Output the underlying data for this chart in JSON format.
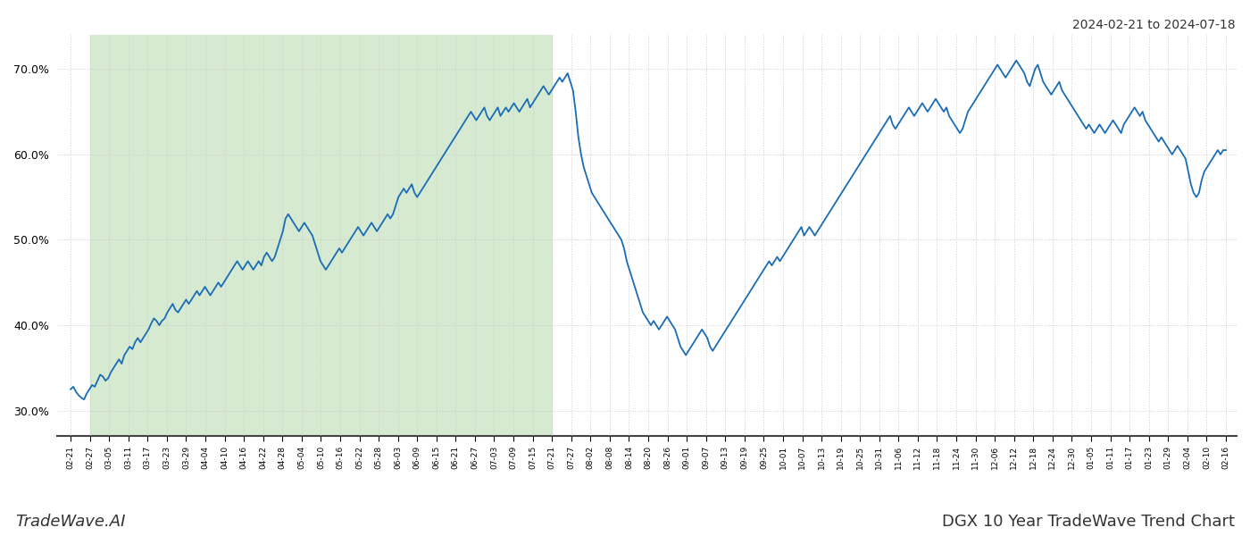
{
  "title_top_right": "2024-02-21 to 2024-07-18",
  "title_bottom_left": "TradeWave.AI",
  "title_bottom_right": "DGX 10 Year TradeWave Trend Chart",
  "line_color": "#1a6cb5",
  "line_width": 1.3,
  "highlight_color": "#d5ead0",
  "ylim_low": 27.0,
  "ylim_high": 74.0,
  "yticks": [
    30.0,
    40.0,
    50.0,
    60.0,
    70.0
  ],
  "grid_color": "#cccccc",
  "x_labels": [
    "02-21",
    "02-27",
    "03-05",
    "03-11",
    "03-17",
    "03-23",
    "03-29",
    "04-04",
    "04-10",
    "04-16",
    "04-22",
    "04-28",
    "05-04",
    "05-10",
    "05-16",
    "05-22",
    "05-28",
    "06-03",
    "06-09",
    "06-15",
    "06-21",
    "06-27",
    "07-03",
    "07-09",
    "07-15",
    "07-21",
    "07-27",
    "08-02",
    "08-08",
    "08-14",
    "08-20",
    "08-26",
    "09-01",
    "09-07",
    "09-13",
    "09-19",
    "09-25",
    "10-01",
    "10-07",
    "10-13",
    "10-19",
    "10-25",
    "10-31",
    "11-06",
    "11-12",
    "11-18",
    "11-24",
    "11-30",
    "12-06",
    "12-12",
    "12-18",
    "12-24",
    "12-30",
    "01-05",
    "01-11",
    "01-17",
    "01-23",
    "01-29",
    "02-04",
    "02-10",
    "02-16"
  ],
  "highlight_label_start": "02-27",
  "highlight_label_end": "07-21",
  "values": [
    32.5,
    32.8,
    32.2,
    31.8,
    31.5,
    31.3,
    32.0,
    32.5,
    33.0,
    32.8,
    33.5,
    34.2,
    34.0,
    33.5,
    33.8,
    34.5,
    35.0,
    35.5,
    36.0,
    35.5,
    36.5,
    37.0,
    37.5,
    37.2,
    38.0,
    38.5,
    38.0,
    38.5,
    39.0,
    39.5,
    40.2,
    40.8,
    40.5,
    40.0,
    40.5,
    40.8,
    41.5,
    42.0,
    42.5,
    41.8,
    41.5,
    42.0,
    42.5,
    43.0,
    42.5,
    43.0,
    43.5,
    44.0,
    43.5,
    44.0,
    44.5,
    44.0,
    43.5,
    44.0,
    44.5,
    45.0,
    44.5,
    45.0,
    45.5,
    46.0,
    46.5,
    47.0,
    47.5,
    47.0,
    46.5,
    47.0,
    47.5,
    47.0,
    46.5,
    47.0,
    47.5,
    47.0,
    48.0,
    48.5,
    48.0,
    47.5,
    48.0,
    49.0,
    50.0,
    51.0,
    52.5,
    53.0,
    52.5,
    52.0,
    51.5,
    51.0,
    51.5,
    52.0,
    51.5,
    51.0,
    50.5,
    49.5,
    48.5,
    47.5,
    47.0,
    46.5,
    47.0,
    47.5,
    48.0,
    48.5,
    49.0,
    48.5,
    49.0,
    49.5,
    50.0,
    50.5,
    51.0,
    51.5,
    51.0,
    50.5,
    51.0,
    51.5,
    52.0,
    51.5,
    51.0,
    51.5,
    52.0,
    52.5,
    53.0,
    52.5,
    53.0,
    54.0,
    55.0,
    55.5,
    56.0,
    55.5,
    56.0,
    56.5,
    55.5,
    55.0,
    55.5,
    56.0,
    56.5,
    57.0,
    57.5,
    58.0,
    58.5,
    59.0,
    59.5,
    60.0,
    60.5,
    61.0,
    61.5,
    62.0,
    62.5,
    63.0,
    63.5,
    64.0,
    64.5,
    65.0,
    64.5,
    64.0,
    64.5,
    65.0,
    65.5,
    64.5,
    64.0,
    64.5,
    65.0,
    65.5,
    64.5,
    65.0,
    65.5,
    65.0,
    65.5,
    66.0,
    65.5,
    65.0,
    65.5,
    66.0,
    66.5,
    65.5,
    66.0,
    66.5,
    67.0,
    67.5,
    68.0,
    67.5,
    67.0,
    67.5,
    68.0,
    68.5,
    69.0,
    68.5,
    69.0,
    69.5,
    68.5,
    67.5,
    65.0,
    62.0,
    60.0,
    58.5,
    57.5,
    56.5,
    55.5,
    55.0,
    54.5,
    54.0,
    53.5,
    53.0,
    52.5,
    52.0,
    51.5,
    51.0,
    50.5,
    50.0,
    49.0,
    47.5,
    46.5,
    45.5,
    44.5,
    43.5,
    42.5,
    41.5,
    41.0,
    40.5,
    40.0,
    40.5,
    40.0,
    39.5,
    40.0,
    40.5,
    41.0,
    40.5,
    40.0,
    39.5,
    38.5,
    37.5,
    37.0,
    36.5,
    37.0,
    37.5,
    38.0,
    38.5,
    39.0,
    39.5,
    39.0,
    38.5,
    37.5,
    37.0,
    37.5,
    38.0,
    38.5,
    39.0,
    39.5,
    40.0,
    40.5,
    41.0,
    41.5,
    42.0,
    42.5,
    43.0,
    43.5,
    44.0,
    44.5,
    45.0,
    45.5,
    46.0,
    46.5,
    47.0,
    47.5,
    47.0,
    47.5,
    48.0,
    47.5,
    48.0,
    48.5,
    49.0,
    49.5,
    50.0,
    50.5,
    51.0,
    51.5,
    50.5,
    51.0,
    51.5,
    51.0,
    50.5,
    51.0,
    51.5,
    52.0,
    52.5,
    53.0,
    53.5,
    54.0,
    54.5,
    55.0,
    55.5,
    56.0,
    56.5,
    57.0,
    57.5,
    58.0,
    58.5,
    59.0,
    59.5,
    60.0,
    60.5,
    61.0,
    61.5,
    62.0,
    62.5,
    63.0,
    63.5,
    64.0,
    64.5,
    63.5,
    63.0,
    63.5,
    64.0,
    64.5,
    65.0,
    65.5,
    65.0,
    64.5,
    65.0,
    65.5,
    66.0,
    65.5,
    65.0,
    65.5,
    66.0,
    66.5,
    66.0,
    65.5,
    65.0,
    65.5,
    64.5,
    64.0,
    63.5,
    63.0,
    62.5,
    63.0,
    64.0,
    65.0,
    65.5,
    66.0,
    66.5,
    67.0,
    67.5,
    68.0,
    68.5,
    69.0,
    69.5,
    70.0,
    70.5,
    70.0,
    69.5,
    69.0,
    69.5,
    70.0,
    70.5,
    71.0,
    70.5,
    70.0,
    69.5,
    68.5,
    68.0,
    69.0,
    70.0,
    70.5,
    69.5,
    68.5,
    68.0,
    67.5,
    67.0,
    67.5,
    68.0,
    68.5,
    67.5,
    67.0,
    66.5,
    66.0,
    65.5,
    65.0,
    64.5,
    64.0,
    63.5,
    63.0,
    63.5,
    63.0,
    62.5,
    63.0,
    63.5,
    63.0,
    62.5,
    63.0,
    63.5,
    64.0,
    63.5,
    63.0,
    62.5,
    63.5,
    64.0,
    64.5,
    65.0,
    65.5,
    65.0,
    64.5,
    65.0,
    64.0,
    63.5,
    63.0,
    62.5,
    62.0,
    61.5,
    62.0,
    61.5,
    61.0,
    60.5,
    60.0,
    60.5,
    61.0,
    60.5,
    60.0,
    59.5,
    58.0,
    56.5,
    55.5,
    55.0,
    55.5,
    57.0,
    58.0,
    58.5,
    59.0,
    59.5,
    60.0,
    60.5,
    60.0,
    60.5,
    60.5
  ]
}
